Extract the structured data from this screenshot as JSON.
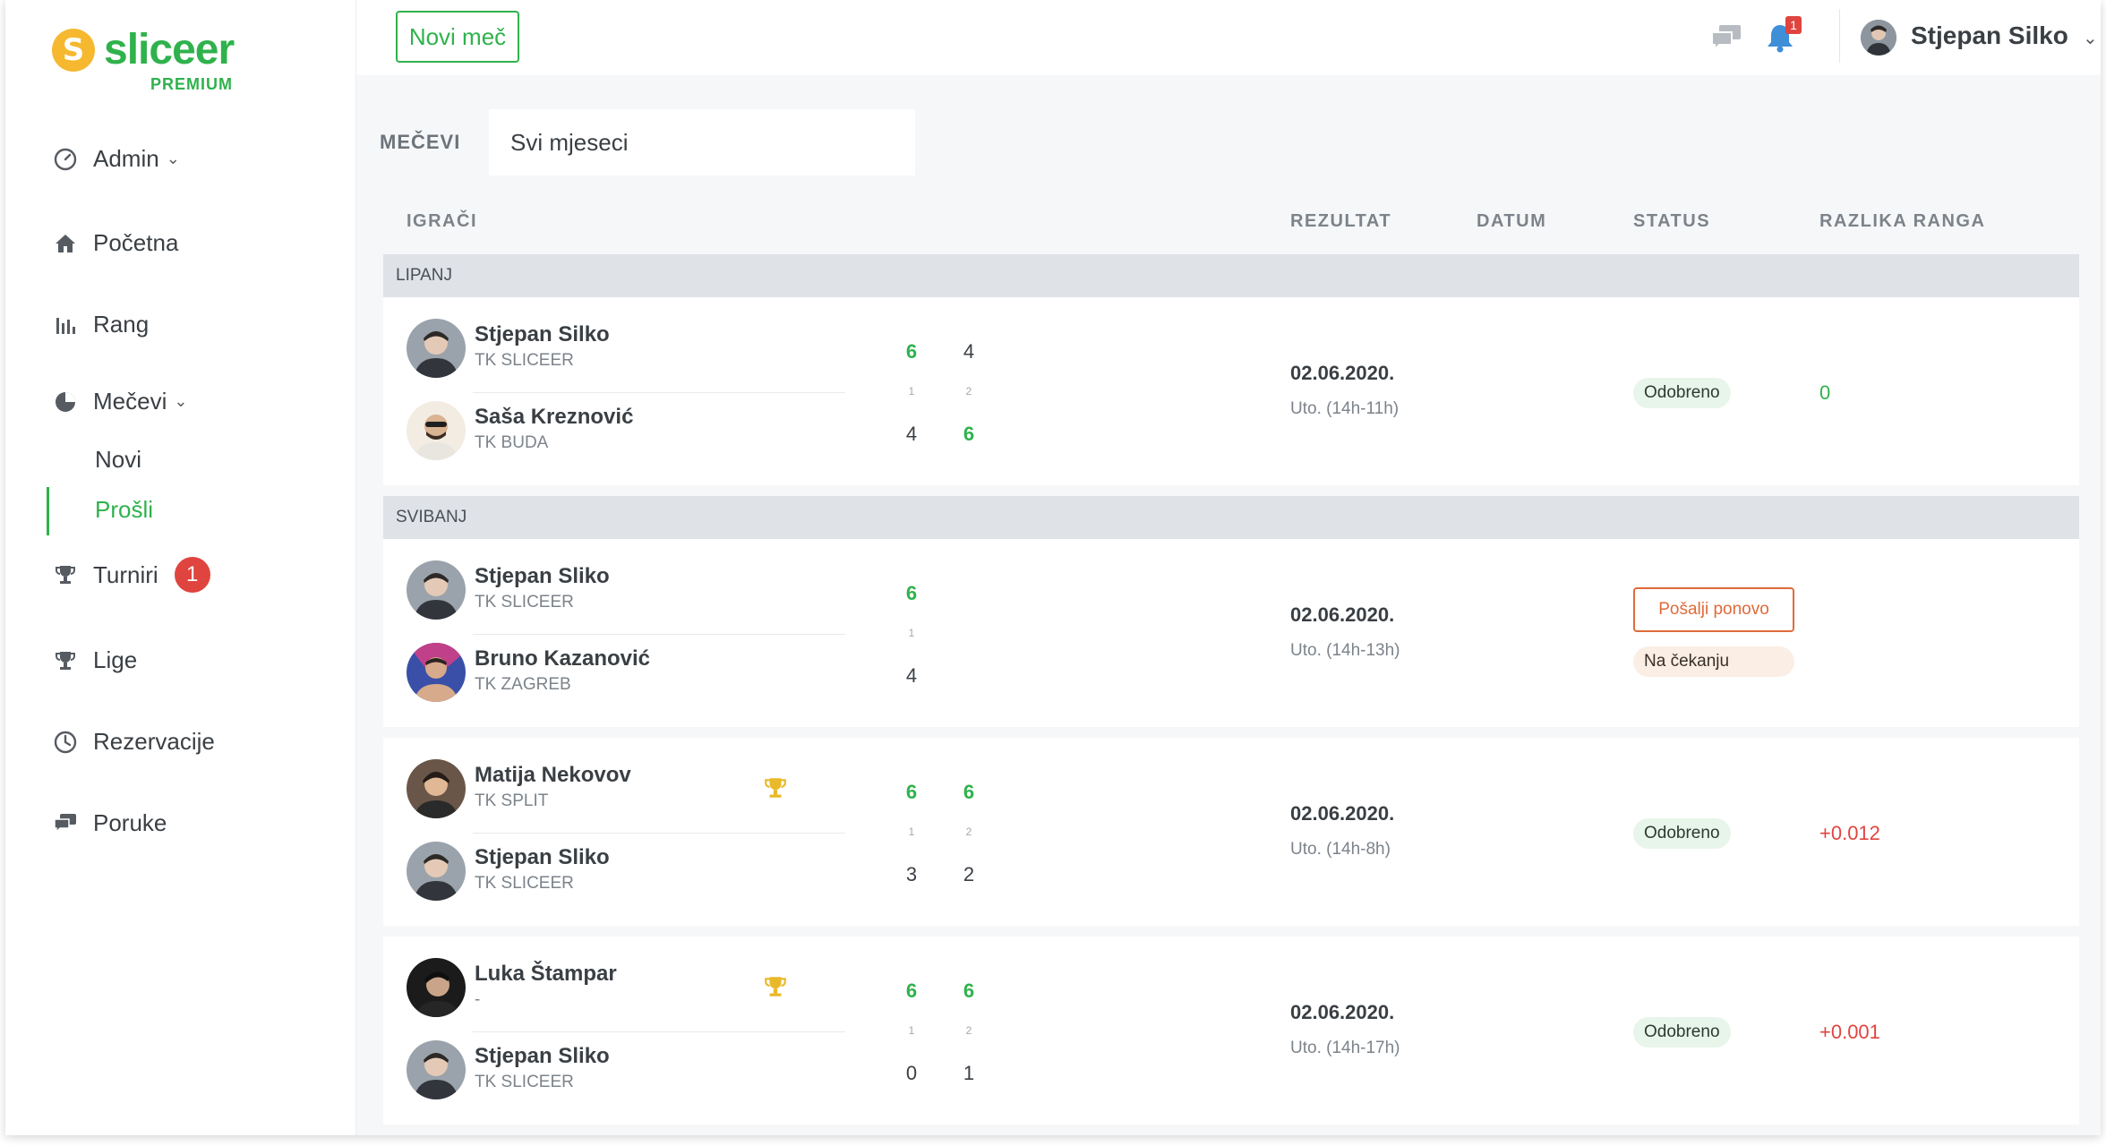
{
  "app": {
    "brand": "sliceer",
    "plan": "PREMIUM",
    "colors": {
      "accent": "#2fb24c",
      "logo": "#f5b82e",
      "danger": "#e0443f",
      "warn": "#e06a3a"
    }
  },
  "sidebar": {
    "admin": "Admin",
    "home": "Početna",
    "rank": "Rang",
    "matches": "Mečevi",
    "matches_sub": {
      "new": "Novi",
      "past": "Prošli"
    },
    "tournaments": "Turniri",
    "tournaments_badge": "1",
    "leagues": "Lige",
    "reservations": "Rezervacije",
    "messages": "Poruke"
  },
  "topbar": {
    "new_match": "Novi meč",
    "notifications_count": "1",
    "user_name": "Stjepan Silko"
  },
  "filter": {
    "label": "MEČEVI",
    "value": "Svi mjeseci"
  },
  "table": {
    "headers": {
      "players": "IGRAČI",
      "result": "REZULTAT",
      "date": "DATUM",
      "status": "STATUS",
      "rank_diff": "RAZLIKA RANGA"
    },
    "groups": [
      {
        "month": "LIPANJ",
        "matches": [
          {
            "p1": {
              "name": "Stjepan Silko",
              "club": "TK SLICEER"
            },
            "p2": {
              "name": "Saša Kreznović",
              "club": "TK BUDA"
            },
            "sets": [
              {
                "p1": "6",
                "p2": "4",
                "label": "1"
              },
              {
                "p1": "4",
                "p2": "6",
                "label": "2"
              }
            ],
            "date": "02.06.2020.",
            "time": "Uto. (14h-11h)",
            "status": "Odobreno",
            "rank_diff": "0"
          }
        ]
      },
      {
        "month": "SVIBANJ",
        "matches": [
          {
            "p1": {
              "name": "Stjepan Sliko",
              "club": "TK SLICEER"
            },
            "p2": {
              "name": "Bruno Kazanović",
              "club": "TK ZAGREB"
            },
            "sets": [
              {
                "p1": "6",
                "p2": "4",
                "label": "1"
              }
            ],
            "date": "02.06.2020.",
            "time": "Uto. (14h-13h)",
            "resend": "Pošalji ponovo",
            "status": "Na čekanju",
            "rank_diff": ""
          },
          {
            "p1": {
              "name": "Matija Nekovov",
              "club": "TK SPLIT"
            },
            "p2": {
              "name": "Stjepan Sliko",
              "club": "TK SLICEER"
            },
            "sets": [
              {
                "p1": "6",
                "p2": "3",
                "label": "1"
              },
              {
                "p1": "6",
                "p2": "2",
                "label": "2"
              }
            ],
            "date": "02.06.2020.",
            "time": "Uto. (14h-8h)",
            "status": "Odobreno",
            "rank_diff": "+0.012"
          },
          {
            "p1": {
              "name": "Luka Štampar",
              "club": "-"
            },
            "p2": {
              "name": "Stjepan Sliko",
              "club": "TK SLICEER"
            },
            "sets": [
              {
                "p1": "6",
                "p2": "0",
                "label": "1"
              },
              {
                "p1": "6",
                "p2": "1",
                "label": "2"
              }
            ],
            "date": "02.06.2020.",
            "time": "Uto. (14h-17h)",
            "status": "Odobreno",
            "rank_diff": "+0.001"
          }
        ]
      }
    ]
  }
}
